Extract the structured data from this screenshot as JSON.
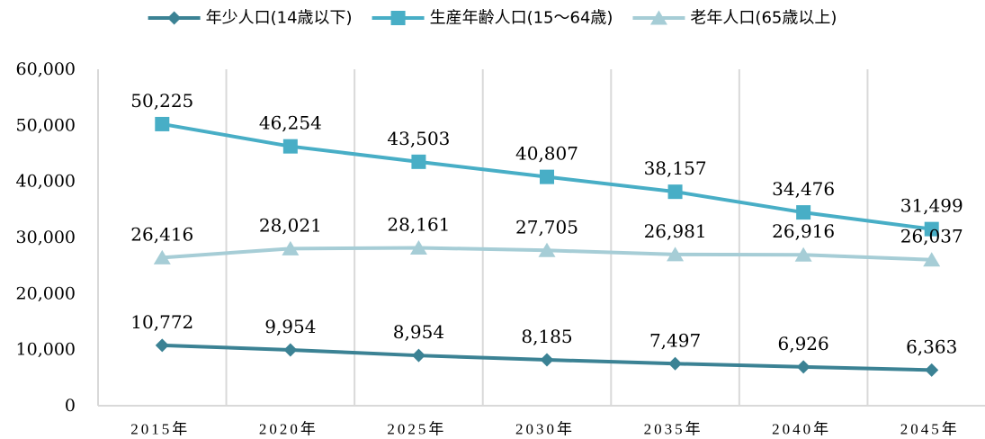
{
  "chart_data": {
    "type": "line",
    "title": "",
    "xlabel": "",
    "ylabel": "",
    "categories": [
      "2015年",
      "2020年",
      "2025年",
      "2030年",
      "2035年",
      "2040年",
      "2045年"
    ],
    "ylim": [
      0,
      60000
    ],
    "y_ticks": [
      0,
      10000,
      20000,
      30000,
      40000,
      50000,
      60000
    ],
    "y_tick_labels": [
      "0",
      "10,000",
      "20,000",
      "30,000",
      "40,000",
      "50,000",
      "60,000"
    ],
    "grid": "vertical",
    "legend_position": "top",
    "series": [
      {
        "name": "年少人口(14歳以下)",
        "marker": "diamond",
        "color": "#3B8294",
        "values": [
          10772,
          9954,
          8954,
          8185,
          7497,
          6926,
          6363
        ],
        "labels": [
          "10,772",
          "9,954",
          "8,954",
          "8,185",
          "7,497",
          "6,926",
          "6,363"
        ]
      },
      {
        "name": "生産年齢人口(15～64歳)",
        "marker": "square",
        "color": "#48AEC6",
        "values": [
          50225,
          46254,
          43503,
          40807,
          38157,
          34476,
          31499
        ],
        "labels": [
          "50,225",
          "46,254",
          "43,503",
          "40,807",
          "38,157",
          "34,476",
          "31,499"
        ]
      },
      {
        "name": "老年人口(65歳以上)",
        "marker": "triangle",
        "color": "#A6CDD6",
        "values": [
          26416,
          28021,
          28161,
          27705,
          26981,
          26916,
          26037
        ],
        "labels": [
          "26,416",
          "28,021",
          "28,161",
          "27,705",
          "26,981",
          "26,916",
          "26,037"
        ]
      }
    ]
  }
}
